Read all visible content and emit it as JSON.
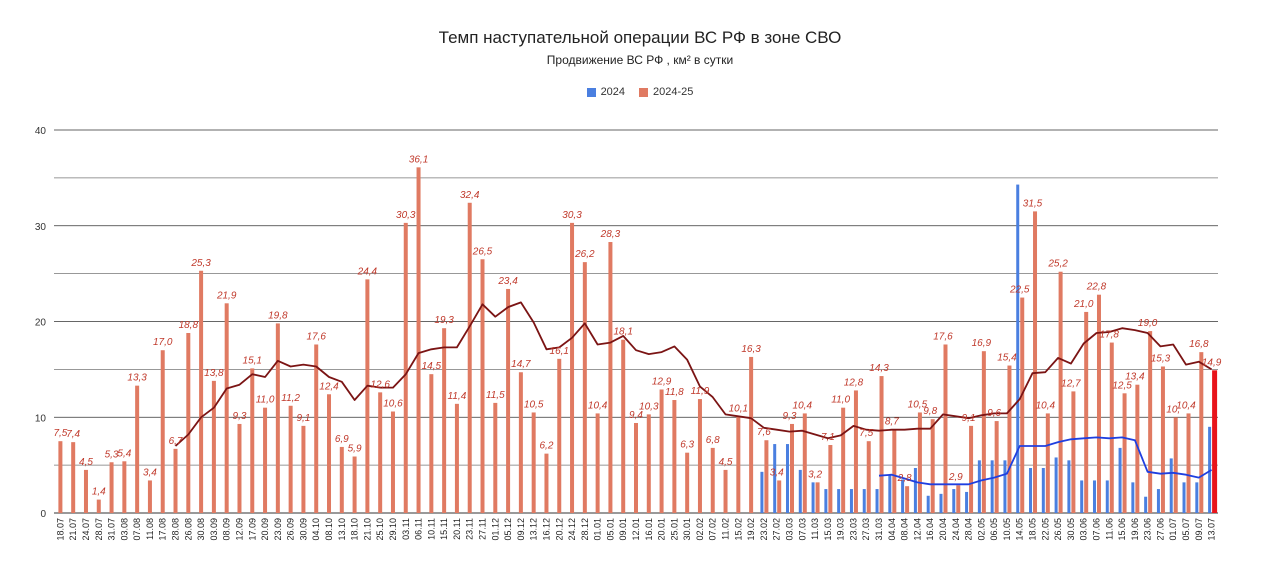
{
  "title": "Темп наступательной операции ВС РФ в зоне СВО",
  "subtitle": "Продвижение ВС РФ , км² в сутки",
  "legend": [
    {
      "label": "2024",
      "color": "#4a7fe0"
    },
    {
      "label": "2024-25",
      "color": "#e07a62"
    }
  ],
  "chart_data": {
    "type": "bar",
    "ylim": [
      0,
      40
    ],
    "yticks": [
      "0",
      "10",
      "20",
      "30",
      "40"
    ],
    "grid": true,
    "legend_position": "top",
    "categories": [
      "18.07",
      "21.07",
      "24.07",
      "28.07",
      "31.07",
      "03.08",
      "07.08",
      "11.08",
      "17.08",
      "28.08",
      "26.08",
      "30.08",
      "03.09",
      "08.09",
      "12.09",
      "17.09",
      "20.09",
      "23.09",
      "26.09",
      "30.09",
      "04.10",
      "08.10",
      "13.10",
      "18.10",
      "21.10",
      "25.10",
      "29.10",
      "03.11",
      "06.11",
      "10.11",
      "15.11",
      "20.11",
      "23.11",
      "27.11",
      "01.12",
      "05.12",
      "09.12",
      "13.12",
      "16.12",
      "20.12",
      "24.12",
      "28.12",
      "01.01",
      "05.01",
      "09.01",
      "12.01",
      "16.01",
      "20.01",
      "25.01",
      "30.01",
      "02.02",
      "07.02",
      "11.02",
      "15.02",
      "19.02",
      "23.02",
      "27.02",
      "03.03",
      "07.03",
      "11.03",
      "15.03",
      "19.03",
      "23.03",
      "27.03",
      "31.03",
      "04.04",
      "08.04",
      "12.04",
      "16.04",
      "20.04",
      "24.04",
      "28.04",
      "02.05",
      "06.05",
      "10.05",
      "14.05",
      "18.05",
      "22.05",
      "26.05",
      "30.05",
      "03.06",
      "07.06",
      "11.06",
      "15.06",
      "19.06",
      "23.06",
      "27.06",
      "01.07",
      "05.07",
      "09.07",
      "13.07"
    ],
    "series": [
      {
        "name": "2024-25",
        "color": "#e07a62",
        "values": [
          7.5,
          7.4,
          4.5,
          1.4,
          5.3,
          5.4,
          13.3,
          3.4,
          17.0,
          6.7,
          18.8,
          25.3,
          13.8,
          21.9,
          9.3,
          15.1,
          11.0,
          19.8,
          11.2,
          9.1,
          17.6,
          12.4,
          6.9,
          5.9,
          24.4,
          12.6,
          10.6,
          30.3,
          36.1,
          14.5,
          19.3,
          11.4,
          32.4,
          26.5,
          11.5,
          23.4,
          14.7,
          10.5,
          6.2,
          16.1,
          30.3,
          26.2,
          10.4,
          28.3,
          18.1,
          9.4,
          10.3,
          12.9,
          11.8,
          6.3,
          11.9,
          6.8,
          4.5,
          10.1,
          16.3,
          7.6,
          3.4,
          9.3,
          10.4,
          3.2,
          7.1,
          11.0,
          12.8,
          7.5,
          14.3,
          8.7,
          2.8,
          10.5,
          9.8,
          17.6,
          2.9,
          9.1,
          16.9,
          9.6,
          15.4,
          22.5,
          31.5,
          10.4,
          25.2,
          12.7,
          21.0,
          22.8,
          17.8,
          12.5,
          13.4,
          19.0,
          15.3,
          10.0,
          10.4,
          16.8,
          14.9
        ],
        "labels": [
          "7,5",
          "7,4",
          "4,5",
          "1,4",
          "5,3",
          "5,4",
          "13,3",
          "3,4",
          "17,0",
          "6,7",
          "18,8",
          "25,3",
          "13,8",
          "21,9",
          "9,3",
          "15,1",
          "11,0",
          "19,8",
          "11,2",
          "9,1",
          "17,6",
          "12,4",
          "6,9",
          "5,9",
          "24,4",
          "12,6",
          "10,6",
          "30,3",
          "36,1",
          "14,5",
          "19,3",
          "11,4",
          "32,4",
          "26,5",
          "11,5",
          "23,4",
          "14,7",
          "10,5",
          "6,2",
          "16,1",
          "30,3",
          "26,2",
          "10,4",
          "28,3",
          "18,1",
          "9,4",
          "10,3",
          "12,9",
          "11,8",
          "6,3",
          "11,9",
          "6,8",
          "4,5",
          "10,1",
          "16,3",
          "7,6",
          "3,4",
          "9,3",
          "10,4",
          "3,2",
          "7,1",
          "11,0",
          "12,8",
          "7,5",
          "14,3",
          "8,7",
          "2,8",
          "10,5",
          "9,8",
          "17,6",
          "2,9",
          "9,1",
          "16,9",
          "9,6",
          "15,4",
          "22,5",
          "31,5",
          "10,4",
          "25,2",
          "12,7",
          "21,0",
          "22,8",
          "17,8",
          "12,5",
          "13,4",
          "19,0",
          "15,3",
          "10,",
          "10,4",
          "16,8",
          "14,9"
        ]
      },
      {
        "name": "2024",
        "color": "#4a7fe0",
        "values": [
          null,
          null,
          null,
          null,
          null,
          null,
          null,
          null,
          null,
          null,
          null,
          null,
          null,
          null,
          null,
          null,
          null,
          null,
          null,
          null,
          null,
          null,
          null,
          null,
          null,
          null,
          null,
          null,
          null,
          null,
          null,
          null,
          null,
          null,
          null,
          null,
          null,
          null,
          null,
          null,
          null,
          null,
          null,
          null,
          null,
          null,
          null,
          null,
          null,
          null,
          null,
          null,
          null,
          null,
          null,
          4.3,
          7.2,
          7.2,
          4.5,
          3.2,
          2.5,
          2.5,
          2.5,
          2.5,
          2.5,
          4.0,
          3.5,
          4.7,
          1.8,
          2.0,
          2.5,
          2.2,
          5.5,
          5.5,
          5.5,
          34.3,
          4.7,
          4.7,
          5.8,
          5.5,
          3.4,
          3.4,
          3.4,
          6.8,
          3.2,
          1.7,
          2.5,
          5.7,
          3.2,
          3.2,
          9.0
        ]
      }
    ],
    "trend_2024_25": [
      null,
      null,
      null,
      null,
      null,
      null,
      null,
      null,
      null,
      7.0,
      8.2,
      10.0,
      11.0,
      13.0,
      13.4,
      14.5,
      14.2,
      15.9,
      15.3,
      15.5,
      15.3,
      14.2,
      13.7,
      11.8,
      13.3,
      13.1,
      13.1,
      14.5,
      16.7,
      17.1,
      17.3,
      17.3,
      19.5,
      21.8,
      20.5,
      21.5,
      22.0,
      19.9,
      17.1,
      17.3,
      18.3,
      19.8,
      17.6,
      17.8,
      18.5,
      17.0,
      16.6,
      16.8,
      17.4,
      16.0,
      13.2,
      12.1,
      10.3,
      10.1,
      9.9,
      8.9,
      8.7,
      8.5,
      8.6,
      8.2,
      7.8,
      8.1,
      9.1,
      8.7,
      8.6,
      8.7,
      8.7,
      8.8,
      8.8,
      10.3,
      10.1,
      9.9,
      10.2,
      10.4,
      10.4,
      11.9,
      14.6,
      14.7,
      16.2,
      15.6,
      17.7,
      18.8,
      18.9,
      19.3,
      19.1,
      18.8,
      17.4,
      17.6,
      15.5,
      15.8,
      15.0
    ],
    "trend_2024": [
      null,
      null,
      null,
      null,
      null,
      null,
      null,
      null,
      null,
      null,
      null,
      null,
      null,
      null,
      null,
      null,
      null,
      null,
      null,
      null,
      null,
      null,
      null,
      null,
      null,
      null,
      null,
      null,
      null,
      null,
      null,
      null,
      null,
      null,
      null,
      null,
      null,
      null,
      null,
      null,
      null,
      null,
      null,
      null,
      null,
      null,
      null,
      null,
      null,
      null,
      null,
      null,
      null,
      null,
      null,
      null,
      null,
      null,
      null,
      null,
      null,
      null,
      null,
      null,
      3.9,
      4.0,
      3.6,
      3.2,
      3.0,
      3.0,
      3.0,
      3.0,
      3.4,
      3.7,
      4.1,
      7.0,
      7.0,
      7.0,
      7.4,
      7.7,
      7.8,
      7.9,
      7.8,
      7.9,
      7.6,
      4.3,
      4.1,
      4.2,
      4.0,
      3.7,
      4.5
    ]
  }
}
